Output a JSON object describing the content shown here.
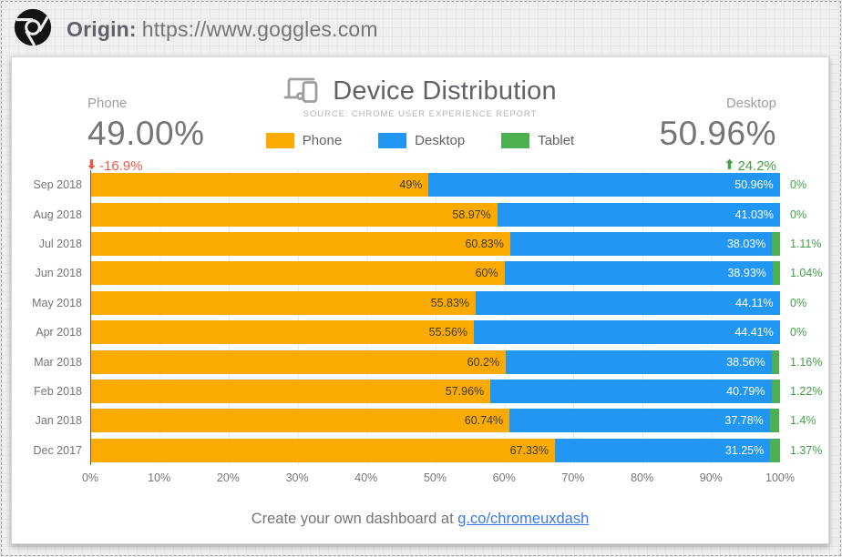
{
  "header": {
    "origin_label": "Origin:",
    "origin_url": "https://www.goggles.com"
  },
  "card": {
    "title": "Device Distribution",
    "subtitle": "SOURCE: CHROME USER EXPERIENCE REPORT",
    "stats": {
      "left": {
        "label": "Phone",
        "value": "49.00%",
        "delta": "-16.9%",
        "direction": "down",
        "delta_color": "#E8594B"
      },
      "right": {
        "label": "Desktop",
        "value": "50.96%",
        "delta": "24.2%",
        "direction": "up",
        "delta_color": "#43A047"
      }
    },
    "legend": [
      {
        "label": "Phone",
        "color": "#FBAB00"
      },
      {
        "label": "Desktop",
        "color": "#2196F3"
      },
      {
        "label": "Tablet",
        "color": "#4CAF50"
      }
    ],
    "footer": {
      "text": "Create your own dashboard at ",
      "link": "g.co/chromeuxdash"
    }
  },
  "chart_data": {
    "type": "bar",
    "orientation": "horizontal",
    "stacked": true,
    "xlim": [
      0,
      100
    ],
    "x_ticks": [
      "0%",
      "10%",
      "20%",
      "30%",
      "40%",
      "50%",
      "60%",
      "70%",
      "80%",
      "90%",
      "100%"
    ],
    "categories": [
      "Sep 2018",
      "Aug 2018",
      "Jul 2018",
      "Jun 2018",
      "May 2018",
      "Apr 2018",
      "Mar 2018",
      "Feb 2018",
      "Jan 2018",
      "Dec 2017"
    ],
    "series": [
      {
        "name": "Phone",
        "color": "#FBAB00",
        "label_color": "#3a3a3a",
        "label_position": "inside",
        "values": [
          49,
          58.97,
          60.83,
          60,
          55.83,
          55.56,
          60.2,
          57.96,
          60.74,
          67.33
        ],
        "labels": [
          "49%",
          "58.97%",
          "60.83%",
          "60%",
          "55.83%",
          "55.56%",
          "60.2%",
          "57.96%",
          "60.74%",
          "67.33%"
        ]
      },
      {
        "name": "Desktop",
        "color": "#2196F3",
        "label_color": "#ffffff",
        "label_position": "inside",
        "values": [
          50.96,
          41.03,
          38.03,
          38.93,
          44.11,
          44.41,
          38.56,
          40.79,
          37.78,
          31.25
        ],
        "labels": [
          "50.96%",
          "41.03%",
          "38.03%",
          "38.93%",
          "44.11%",
          "44.41%",
          "38.56%",
          "40.79%",
          "37.78%",
          "31.25%"
        ]
      },
      {
        "name": "Tablet",
        "color": "#4CAF50",
        "label_color": "#43A047",
        "label_position": "outside",
        "values": [
          0,
          0,
          1.11,
          1.04,
          0,
          0,
          1.16,
          1.22,
          1.4,
          1.37
        ],
        "labels": [
          "0%",
          "0%",
          "1.11%",
          "1.04%",
          "0%",
          "0%",
          "1.16%",
          "1.22%",
          "1.4%",
          "1.37%"
        ]
      }
    ]
  }
}
